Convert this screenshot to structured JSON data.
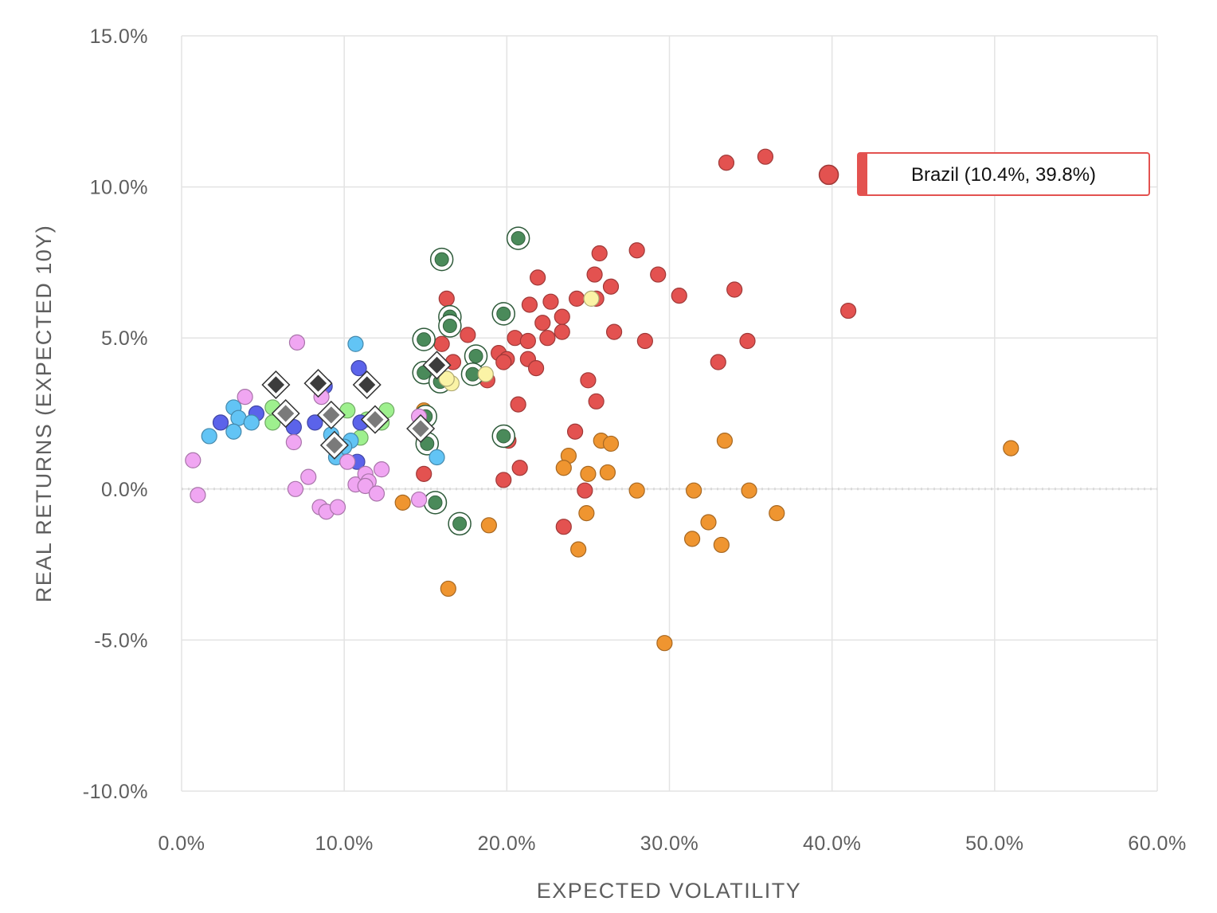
{
  "chart_data": {
    "type": "scatter",
    "xlabel": "EXPECTED VOLATILITY",
    "ylabel": "REAL RETURNS (EXPECTED 10Y)",
    "xlim": [
      0,
      60
    ],
    "ylim": [
      -10,
      15
    ],
    "x_ticks": [
      0,
      10,
      20,
      30,
      40,
      50,
      60
    ],
    "y_ticks": [
      -10,
      -5,
      0,
      5,
      10,
      15
    ],
    "x_tick_labels": [
      "0.0%",
      "10.0%",
      "20.0%",
      "30.0%",
      "40.0%",
      "50.0%",
      "60.0%"
    ],
    "y_tick_labels": [
      "-10.0%",
      "-5.0%",
      "0.0%",
      "5.0%",
      "10.0%",
      "15.0%"
    ],
    "grid": true,
    "colors": {
      "red": "#e35250",
      "orange": "#ef9530",
      "darkgreen": "#4a8a5a",
      "lightgreen": "#9ef08e",
      "blue": "#5b63ea",
      "lightblue": "#62c4f5",
      "pink": "#f0a6f2",
      "yellow": "#fbf3a6",
      "diamond_dark": "#3c3c3c",
      "diamond_gray": "#7a7a7a"
    },
    "highlight": {
      "label": "Brazil (10.4%, 39.8%)",
      "x": 39.8,
      "y": 10.4,
      "color": "#e35250"
    },
    "series": [
      {
        "name": "red",
        "color": "#e35250",
        "marker": "circle",
        "points": [
          [
            33.5,
            10.8
          ],
          [
            35.9,
            11.0
          ],
          [
            41.0,
            5.9
          ],
          [
            28.0,
            7.9
          ],
          [
            25.7,
            7.8
          ],
          [
            25.4,
            7.1
          ],
          [
            21.9,
            7.0
          ],
          [
            26.4,
            6.7
          ],
          [
            29.3,
            7.1
          ],
          [
            34.0,
            6.6
          ],
          [
            30.6,
            6.4
          ],
          [
            22.7,
            6.2
          ],
          [
            21.4,
            6.1
          ],
          [
            24.3,
            6.3
          ],
          [
            25.5,
            6.3
          ],
          [
            16.3,
            6.3
          ],
          [
            23.4,
            5.7
          ],
          [
            22.2,
            5.5
          ],
          [
            26.6,
            5.2
          ],
          [
            23.4,
            5.2
          ],
          [
            17.6,
            5.1
          ],
          [
            20.5,
            5.0
          ],
          [
            21.3,
            4.9
          ],
          [
            22.5,
            5.0
          ],
          [
            28.5,
            4.9
          ],
          [
            34.8,
            4.9
          ],
          [
            16.0,
            4.8
          ],
          [
            19.5,
            4.5
          ],
          [
            20.0,
            4.3
          ],
          [
            21.3,
            4.3
          ],
          [
            21.8,
            4.0
          ],
          [
            19.8,
            4.2
          ],
          [
            33.0,
            4.2
          ],
          [
            16.7,
            4.2
          ],
          [
            18.8,
            3.6
          ],
          [
            25.0,
            3.6
          ],
          [
            25.5,
            2.9
          ],
          [
            20.7,
            2.8
          ],
          [
            24.2,
            1.9
          ],
          [
            20.1,
            1.6
          ],
          [
            14.9,
            1.7
          ],
          [
            14.9,
            0.5
          ],
          [
            19.8,
            0.3
          ],
          [
            20.8,
            0.7
          ],
          [
            24.8,
            -0.05
          ],
          [
            23.5,
            -1.25
          ]
        ]
      },
      {
        "name": "orange",
        "color": "#ef9530",
        "marker": "circle",
        "points": [
          [
            51.0,
            1.35
          ],
          [
            33.4,
            1.6
          ],
          [
            25.8,
            1.6
          ],
          [
            26.4,
            1.5
          ],
          [
            23.8,
            1.1
          ],
          [
            23.5,
            0.7
          ],
          [
            26.2,
            0.55
          ],
          [
            25.0,
            0.5
          ],
          [
            28.0,
            -0.05
          ],
          [
            31.5,
            -0.05
          ],
          [
            34.9,
            -0.05
          ],
          [
            13.6,
            -0.45
          ],
          [
            24.9,
            -0.8
          ],
          [
            36.6,
            -0.8
          ],
          [
            18.9,
            -1.2
          ],
          [
            32.4,
            -1.1
          ],
          [
            31.4,
            -1.65
          ],
          [
            33.2,
            -1.85
          ],
          [
            24.4,
            -2.0
          ],
          [
            16.4,
            -3.3
          ],
          [
            29.7,
            -5.1
          ],
          [
            14.9,
            2.6
          ]
        ]
      },
      {
        "name": "darkgreen",
        "color": "#4a8a5a",
        "marker": "ring",
        "points": [
          [
            20.7,
            8.3
          ],
          [
            16.0,
            7.6
          ],
          [
            19.8,
            5.8
          ],
          [
            16.5,
            5.7
          ],
          [
            16.5,
            5.4
          ],
          [
            14.9,
            4.95
          ],
          [
            18.1,
            4.4
          ],
          [
            14.9,
            3.85
          ],
          [
            17.9,
            3.8
          ],
          [
            15.0,
            2.4
          ],
          [
            19.8,
            1.75
          ],
          [
            15.1,
            1.5
          ],
          [
            15.6,
            -0.45
          ],
          [
            17.1,
            -1.15
          ],
          [
            15.9,
            3.55
          ]
        ]
      },
      {
        "name": "lightgreen",
        "color": "#9ef08e",
        "marker": "circle",
        "points": [
          [
            5.6,
            2.7
          ],
          [
            5.6,
            2.2
          ],
          [
            10.2,
            2.6
          ],
          [
            11.4,
            2.3
          ],
          [
            12.3,
            2.2
          ],
          [
            12.6,
            2.6
          ],
          [
            11.0,
            1.7
          ]
        ]
      },
      {
        "name": "blue",
        "color": "#5b63ea",
        "marker": "circle",
        "points": [
          [
            2.4,
            2.2
          ],
          [
            4.6,
            2.5
          ],
          [
            6.9,
            2.05
          ],
          [
            8.2,
            2.2
          ],
          [
            10.9,
            4.0
          ],
          [
            11.0,
            2.2
          ],
          [
            10.8,
            0.9
          ],
          [
            8.8,
            3.4
          ]
        ]
      },
      {
        "name": "lightblue",
        "color": "#62c4f5",
        "marker": "circle",
        "points": [
          [
            1.7,
            1.75
          ],
          [
            3.2,
            2.7
          ],
          [
            3.5,
            2.35
          ],
          [
            4.3,
            2.2
          ],
          [
            3.2,
            1.9
          ],
          [
            9.2,
            1.8
          ],
          [
            10.4,
            1.6
          ],
          [
            10.0,
            1.4
          ],
          [
            9.5,
            1.05
          ],
          [
            15.7,
            1.05
          ],
          [
            10.7,
            4.8
          ]
        ]
      },
      {
        "name": "pink",
        "color": "#f0a6f2",
        "marker": "circle",
        "points": [
          [
            7.1,
            4.85
          ],
          [
            3.9,
            3.05
          ],
          [
            8.6,
            3.05
          ],
          [
            0.7,
            0.95
          ],
          [
            1.0,
            -0.2
          ],
          [
            6.9,
            1.55
          ],
          [
            7.8,
            0.4
          ],
          [
            7.0,
            0.0
          ],
          [
            10.2,
            0.9
          ],
          [
            10.7,
            0.15
          ],
          [
            11.3,
            0.5
          ],
          [
            11.5,
            0.25
          ],
          [
            11.3,
            0.1
          ],
          [
            12.3,
            0.65
          ],
          [
            12.0,
            -0.15
          ],
          [
            8.5,
            -0.6
          ],
          [
            8.9,
            -0.75
          ],
          [
            9.6,
            -0.6
          ],
          [
            14.6,
            -0.35
          ],
          [
            14.6,
            2.4
          ]
        ]
      },
      {
        "name": "yellow",
        "color": "#fbf3a6",
        "marker": "circle",
        "points": [
          [
            16.6,
            3.5
          ],
          [
            18.7,
            3.8
          ],
          [
            25.2,
            6.3
          ],
          [
            16.3,
            3.65
          ]
        ]
      },
      {
        "name": "diamond_dark",
        "color": "#3c3c3c",
        "marker": "diamond",
        "points": [
          [
            5.8,
            3.45
          ],
          [
            8.4,
            3.5
          ],
          [
            11.4,
            3.45
          ],
          [
            15.7,
            4.1
          ]
        ]
      },
      {
        "name": "diamond_gray",
        "color": "#7a7a7a",
        "marker": "diamond",
        "points": [
          [
            6.4,
            2.5
          ],
          [
            9.2,
            2.45
          ],
          [
            11.9,
            2.3
          ],
          [
            14.7,
            2.0
          ],
          [
            9.4,
            1.45
          ]
        ]
      }
    ]
  }
}
